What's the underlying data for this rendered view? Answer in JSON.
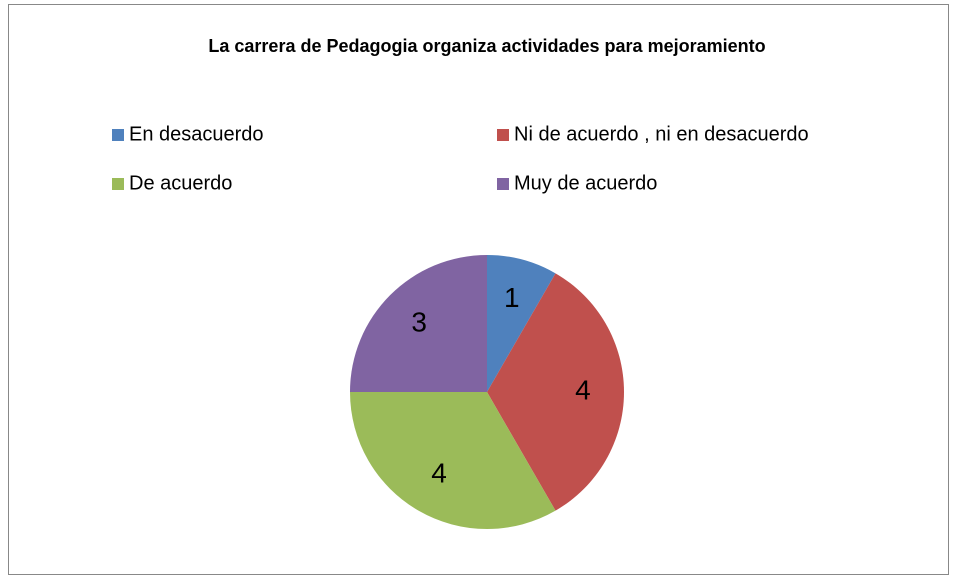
{
  "chart_data": {
    "type": "pie",
    "title": "La carrera de Pedagogia organiza actividades para mejoramiento",
    "categories": [
      "En desacuerdo",
      "Ni de acuerdo , ni en desacuerdo",
      "De acuerdo",
      "Muy de acuerdo"
    ],
    "values": [
      1,
      4,
      4,
      3
    ],
    "colors": [
      "#4f81bd",
      "#c0504d",
      "#9bbb59",
      "#8064a2"
    ],
    "legend": "top"
  }
}
